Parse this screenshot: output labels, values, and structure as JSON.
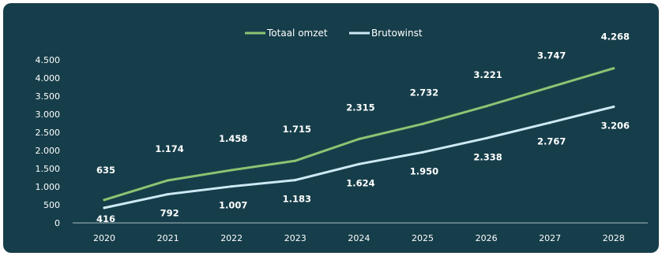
{
  "colors": {
    "background": "#163e4a",
    "totaal_omzet": "#8cc473",
    "brutowinst": "#cdeaf4",
    "text": "#ffffff"
  },
  "chart_data": {
    "type": "line",
    "x": [
      "2020",
      "2021",
      "2022",
      "2023",
      "2024",
      "2025",
      "2026",
      "2027",
      "2028"
    ],
    "series": [
      {
        "name": "Totaal omzet",
        "values": [
          635,
          1174,
          1458,
          1715,
          2315,
          2732,
          3221,
          3747,
          4268
        ],
        "labels": [
          "635",
          "1.174",
          "1.458",
          "1.715",
          "2.315",
          "2.732",
          "3.221",
          "3.747",
          "4.268"
        ]
      },
      {
        "name": "Brutowinst",
        "values": [
          416,
          792,
          1007,
          1183,
          1624,
          1950,
          2338,
          2767,
          3206
        ],
        "labels": [
          "416",
          "792",
          "1.007",
          "1.183",
          "1.624",
          "1.950",
          "2.338",
          "2.767",
          "3.206"
        ]
      }
    ],
    "ylim": [
      0,
      4500
    ],
    "yticks": [
      0,
      500,
      1000,
      1500,
      2000,
      2500,
      3000,
      3500,
      4000,
      4500
    ],
    "ytick_labels": [
      "0",
      "500",
      "1.000",
      "1.500",
      "2.000",
      "2.500",
      "3.000",
      "3.500",
      "4.000",
      "4.500"
    ],
    "grid": false,
    "legend": "top-center",
    "title": "",
    "xlabel": "",
    "ylabel": ""
  }
}
